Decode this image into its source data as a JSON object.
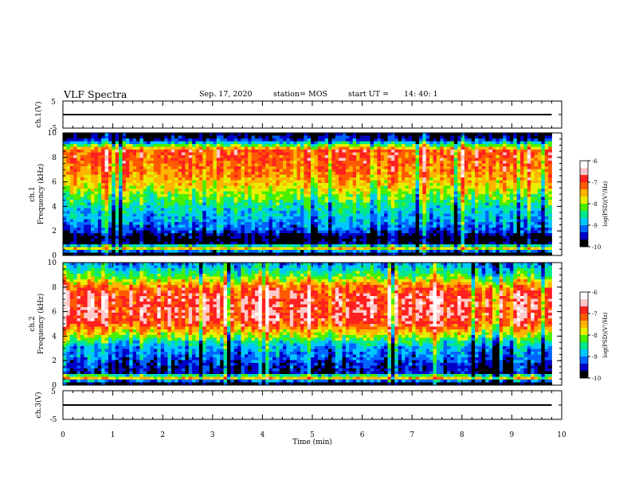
{
  "header": {
    "title": "VLF Spectra",
    "date": "Sep. 17, 2020",
    "station": "station= MOS",
    "start_label": "start  UT =",
    "start_time": "14: 40: 1"
  },
  "chart_data": [
    {
      "panel": "ch1-voltage",
      "type": "line",
      "ylabel": "ch.1(V)",
      "ylim": [
        -5,
        5
      ],
      "yticks": [
        "5",
        "-5"
      ],
      "xlim": [
        0,
        10
      ],
      "series": [
        {
          "x": [
            0,
            9.8
          ],
          "y": [
            0,
            0
          ]
        }
      ]
    },
    {
      "panel": "ch1-spectrogram",
      "type": "heatmap",
      "ylabel": "ch.1\nFrequency (kHz)",
      "ylim": [
        0,
        10
      ],
      "yticks": [
        "0",
        "2",
        "4",
        "6",
        "8",
        "10"
      ],
      "xlim": [
        0,
        9.8
      ],
      "band_power": {
        "freq_khz": [
          0.2,
          0.6,
          1.0,
          1.5,
          2.0,
          2.5,
          3.0,
          3.5,
          4.0,
          4.5,
          5.0,
          5.5,
          6.0,
          6.5,
          7.0,
          7.5,
          8.0,
          8.5,
          9.0,
          9.5,
          9.9
        ],
        "log_psd": [
          -10,
          -7.6,
          -9.8,
          -9.9,
          -9.3,
          -9.1,
          -8.9,
          -8.8,
          -8.6,
          -8.3,
          -8.1,
          -7.8,
          -7.6,
          -7.4,
          -7.3,
          -7.2,
          -7.1,
          -7.0,
          -8.2,
          -9.6,
          -9.9
        ]
      },
      "colorbar": {
        "label": "log(PSD)(V²/Hz)",
        "min": -10,
        "max": -6,
        "ticks": [
          "-6",
          "-7",
          "-8",
          "-9",
          "-10"
        ]
      },
      "colorscale": [
        "#000000",
        "#0000c8",
        "#0064ff",
        "#00c8ff",
        "#00e88c",
        "#46f000",
        "#e6ef00",
        "#ffb400",
        "#ff5a00",
        "#ff2020",
        "#ffc8c8",
        "#ffffff"
      ]
    },
    {
      "panel": "ch2-spectrogram",
      "type": "heatmap",
      "ylabel": "ch.2\nFrequency (kHz)",
      "ylim": [
        0,
        10
      ],
      "yticks": [
        "0",
        "2",
        "4",
        "6",
        "8",
        "10"
      ],
      "xlim": [
        0,
        9.8
      ],
      "band_power": {
        "freq_khz": [
          0.2,
          0.6,
          1.0,
          1.5,
          2.0,
          2.5,
          3.0,
          3.5,
          4.0,
          4.5,
          5.0,
          5.5,
          6.0,
          6.5,
          7.0,
          7.5,
          8.0,
          8.5,
          9.0,
          9.5,
          9.9
        ],
        "log_psd": [
          -10,
          -7.5,
          -9.6,
          -9.5,
          -9.3,
          -9.1,
          -9.0,
          -8.6,
          -8.0,
          -7.5,
          -7.0,
          -6.8,
          -6.8,
          -6.8,
          -6.8,
          -6.9,
          -7.2,
          -7.8,
          -8.3,
          -8.7,
          -9.0
        ]
      },
      "colorbar": {
        "label": "log(PSD)(V²/Hz)",
        "min": -10,
        "max": -6,
        "ticks": [
          "-6",
          "-7",
          "-8",
          "-9",
          "-10"
        ]
      },
      "colorscale": [
        "#000000",
        "#0000c8",
        "#0064ff",
        "#00c8ff",
        "#00e88c",
        "#46f000",
        "#e6ef00",
        "#ffb400",
        "#ff5a00",
        "#ff2020",
        "#ffc8c8",
        "#ffffff"
      ]
    },
    {
      "panel": "ch3-voltage",
      "type": "line",
      "ylabel": "ch.3(V)",
      "ylim": [
        -5,
        5
      ],
      "yticks": [
        "5",
        "-5"
      ],
      "xlim": [
        0,
        10
      ],
      "series": [
        {
          "x": [
            0,
            9.8
          ],
          "y": [
            0,
            0
          ]
        }
      ]
    }
  ],
  "xaxis": {
    "label": "Time  (min)",
    "ticks": [
      "0",
      "1",
      "2",
      "3",
      "4",
      "5",
      "6",
      "7",
      "8",
      "9",
      "10"
    ],
    "range": [
      0,
      10
    ]
  }
}
